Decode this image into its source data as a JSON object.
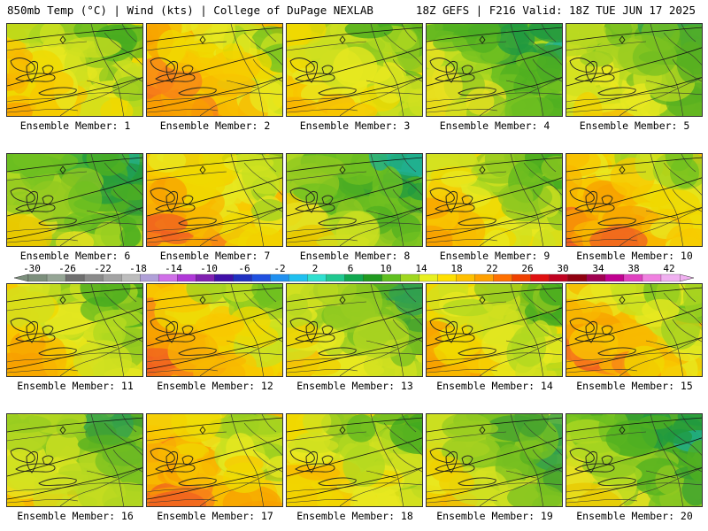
{
  "header": {
    "left": "850mb Temp (°C) | Wind (kts) | College of DuPage NEXLAB",
    "right": "18Z GEFS | F216 Valid: 18Z TUE JUN 17 2025"
  },
  "panels": [
    {
      "label": "Ensemble Member: 1",
      "palette": "warm"
    },
    {
      "label": "Ensemble Member: 2",
      "palette": "hot"
    },
    {
      "label": "Ensemble Member: 3",
      "palette": "warm"
    },
    {
      "label": "Ensemble Member: 4",
      "palette": "cool"
    },
    {
      "label": "Ensemble Member: 5",
      "palette": "mild"
    },
    {
      "label": "Ensemble Member: 6",
      "palette": "cool"
    },
    {
      "label": "Ensemble Member: 7",
      "palette": "hot"
    },
    {
      "label": "Ensemble Member: 8",
      "palette": "cool"
    },
    {
      "label": "Ensemble Member: 9",
      "palette": "warm"
    },
    {
      "label": "Ensemble Member: 10",
      "palette": "hot"
    },
    {
      "label": "Ensemble Member: 11",
      "palette": "warm"
    },
    {
      "label": "Ensemble Member: 12",
      "palette": "hot"
    },
    {
      "label": "Ensemble Member: 13",
      "palette": "mild"
    },
    {
      "label": "Ensemble Member: 14",
      "palette": "warm"
    },
    {
      "label": "Ensemble Member: 15",
      "palette": "hot"
    },
    {
      "label": "Ensemble Member: 16",
      "palette": "mild"
    },
    {
      "label": "Ensemble Member: 17",
      "palette": "hot"
    },
    {
      "label": "Ensemble Member: 18",
      "palette": "warm"
    },
    {
      "label": "Ensemble Member: 19",
      "palette": "mild"
    },
    {
      "label": "Ensemble Member: 20",
      "palette": "cool"
    }
  ],
  "colorbar": {
    "tick_labels": [
      "-30",
      "-26",
      "-22",
      "-18",
      "-14",
      "-10",
      "-6",
      "-2",
      "2",
      "6",
      "10",
      "14",
      "18",
      "22",
      "26",
      "30",
      "34",
      "38",
      "42"
    ],
    "colors": [
      "#7c8f7c",
      "#95a595",
      "#6f6f6f",
      "#8a8a8a",
      "#a3a3a3",
      "#bdbdbd",
      "#b0a0d8",
      "#d070e8",
      "#b038d8",
      "#8020b0",
      "#4010a8",
      "#2030c0",
      "#2050e0",
      "#2090f0",
      "#20c0f0",
      "#30e0d0",
      "#20c890",
      "#10a850",
      "#209a20",
      "#60c020",
      "#a0d820",
      "#e8f020",
      "#ffe000",
      "#ffc000",
      "#ffa000",
      "#ff7000",
      "#f04000",
      "#e01010",
      "#c00020",
      "#900010",
      "#a00050",
      "#c00090",
      "#e040c0",
      "#f080e0",
      "#f0b0f0"
    ]
  },
  "palettes": {
    "hot": [
      "#f06020",
      "#f88018",
      "#f8a000",
      "#f8b800",
      "#f8c800",
      "#f0d800",
      "#e8e820",
      "#c8e020",
      "#a0d020",
      "#70c020"
    ],
    "warm": [
      "#f8a000",
      "#f8b800",
      "#f8c800",
      "#f0d800",
      "#e8e820",
      "#d0e020",
      "#b0d820",
      "#90c820",
      "#60b820",
      "#40a820"
    ],
    "mild": [
      "#f8b800",
      "#f0d000",
      "#e8e820",
      "#d0e020",
      "#b8d820",
      "#98cc20",
      "#78c020",
      "#58b020",
      "#40a030",
      "#30a050"
    ],
    "cool": [
      "#e8c800",
      "#e8e020",
      "#d0e020",
      "#b0d820",
      "#90c820",
      "#70c020",
      "#50b020",
      "#38a030",
      "#209a40",
      "#20b090"
    ]
  }
}
